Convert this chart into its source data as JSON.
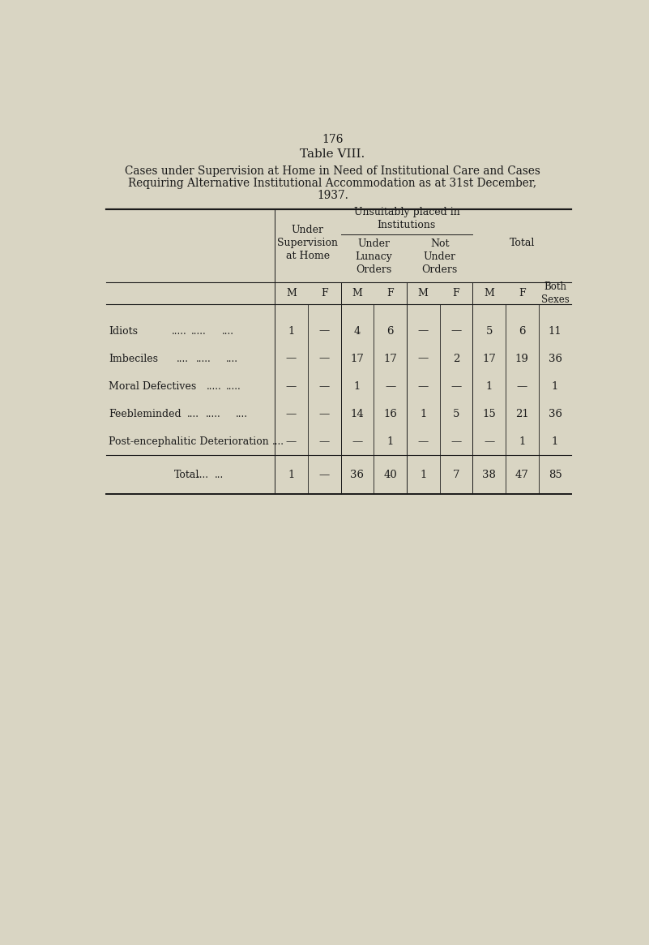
{
  "page_number": "176",
  "table_title": "Table VIII.",
  "subtitle_line1": "Cases under Supervision at Home in Need of Institutional Care and Cases",
  "subtitle_line2": "Requiring Alternative Institutional Accommodation as at 31st December,",
  "subtitle_line3": "1937.",
  "bg_color": "#d9d5c3",
  "rows": [
    {
      "label": "Idiots",
      "dots1": ".....",
      "dots2": ".....",
      "dots3": "....",
      "sup_M": "1",
      "sup_F": "—",
      "ul_M": "4",
      "ul_F": "6",
      "nu_M": "—",
      "nu_F": "—",
      "tot_M": "5",
      "tot_F": "6",
      "both": "11"
    },
    {
      "label": "Imbeciles",
      "dots1": "....",
      "dots2": ".....",
      "dots3": "....",
      "sup_M": "—",
      "sup_F": "—",
      "ul_M": "17",
      "ul_F": "17",
      "nu_M": "—",
      "nu_F": "2",
      "tot_M": "17",
      "tot_F": "19",
      "both": "36"
    },
    {
      "label": "Moral Defectives",
      "dots1": ".....",
      "dots2": ".....",
      "dots3": "",
      "sup_M": "—",
      "sup_F": "—",
      "ul_M": "1",
      "ul_F": "—",
      "nu_M": "—",
      "nu_F": "—",
      "tot_M": "1",
      "tot_F": "—",
      "both": "1"
    },
    {
      "label": "Feebleminded",
      "dots1": "....",
      "dots2": ".....",
      "dots3": "....",
      "sup_M": "—",
      "sup_F": "—",
      "ul_M": "14",
      "ul_F": "16",
      "nu_M": "1",
      "nu_F": "5",
      "tot_M": "15",
      "tot_F": "21",
      "both": "36"
    },
    {
      "label": "Post-encephalitic Deterioration",
      "dots1": "....",
      "dots2": "",
      "dots3": "",
      "sup_M": "—",
      "sup_F": "—",
      "ul_M": "—",
      "ul_F": "1",
      "nu_M": "—",
      "nu_F": "—",
      "tot_M": "—",
      "tot_F": "1",
      "both": "1"
    }
  ],
  "total_row": {
    "label": "Total",
    "dots1": "....",
    "dots2": "...",
    "sup_M": "1",
    "sup_F": "—",
    "ul_M": "36",
    "ul_F": "40",
    "nu_M": "1",
    "nu_F": "7",
    "tot_M": "38",
    "tot_F": "47",
    "both": "85"
  }
}
